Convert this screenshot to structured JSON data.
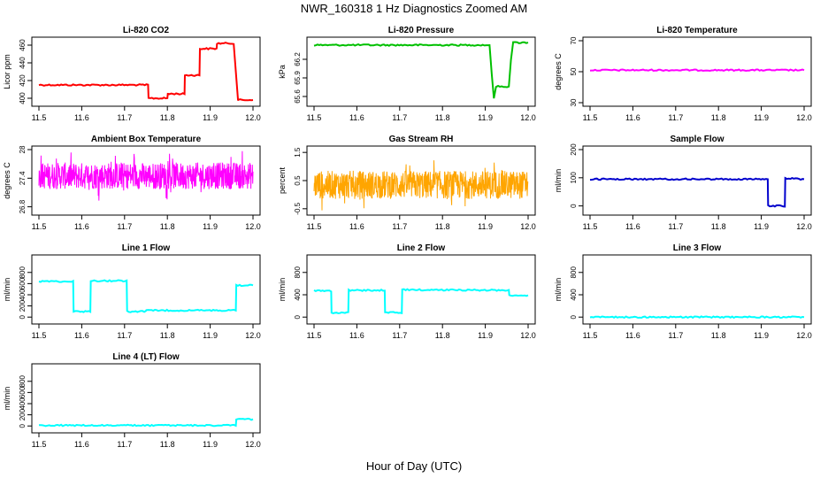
{
  "figure": {
    "title": "NWR_160318  1 Hz Diagnostics Zoomed AM",
    "xlabel": "Hour of Day (UTC)"
  },
  "chart_data": [
    {
      "type": "line",
      "title": "Li-820 CO2",
      "ylabel": "Licor ppm",
      "color": "#ff0000",
      "xlim": [
        11.5,
        12.0
      ],
      "ylim": [
        395,
        465
      ],
      "yticks": [
        400,
        420,
        440,
        460
      ],
      "xticks": [
        11.5,
        11.6,
        11.7,
        11.8,
        11.9,
        12.0
      ],
      "x": [
        11.5,
        11.755,
        11.756,
        11.8,
        11.801,
        11.84,
        11.841,
        11.875,
        11.876,
        11.915,
        11.916,
        11.955,
        11.965,
        11.966,
        12.0
      ],
      "y": [
        415,
        415,
        400,
        400,
        405,
        405,
        426,
        426,
        456,
        456,
        462,
        462,
        398,
        398,
        398
      ]
    },
    {
      "type": "line",
      "title": "Li-820 Pressure",
      "ylabel": "kPa",
      "color": "#00c000",
      "xlim": [
        11.5,
        12.0
      ],
      "ylim": [
        65.5,
        66.5
      ],
      "yticks": [
        65.6,
        65.9,
        66.2
      ],
      "xticks": [
        11.5,
        11.6,
        11.7,
        11.8,
        11.9,
        12.0
      ],
      "x": [
        11.5,
        11.91,
        11.915,
        11.92,
        11.925,
        11.93,
        11.955,
        11.96,
        11.965,
        11.97,
        12.0
      ],
      "y": [
        66.43,
        66.43,
        65.95,
        65.58,
        65.76,
        65.76,
        65.76,
        66.2,
        66.47,
        66.47,
        66.47
      ]
    },
    {
      "type": "line",
      "title": "Li-820 Temperature",
      "ylabel": "degrees C",
      "color": "#ff00ff",
      "xlim": [
        11.5,
        12.0
      ],
      "ylim": [
        30,
        70
      ],
      "yticks": [
        30,
        50,
        70
      ],
      "xticks": [
        11.5,
        11.6,
        11.7,
        11.8,
        11.9,
        12.0
      ],
      "x": [
        11.5,
        12.0
      ],
      "y": [
        51,
        51
      ]
    },
    {
      "type": "noise",
      "title": "Ambient Box Temperature",
      "ylabel": "degrees C",
      "color": "#ff00ff",
      "xlim": [
        11.5,
        12.0
      ],
      "ylim": [
        26.7,
        28.0
      ],
      "yticks": [
        26.8,
        27.4,
        28.0
      ],
      "xticks": [
        11.5,
        11.6,
        11.7,
        11.8,
        11.9,
        12.0
      ],
      "center": 27.45,
      "amplitude": 0.28
    },
    {
      "type": "noise",
      "title": "Gas Stream RH",
      "ylabel": "percent",
      "color": "#ffa500",
      "xlim": [
        11.5,
        12.0
      ],
      "ylim": [
        -0.6,
        1.6
      ],
      "yticks": [
        -0.5,
        0.5,
        1.5
      ],
      "xticks": [
        11.5,
        11.6,
        11.7,
        11.8,
        11.9,
        12.0
      ],
      "center": 0.35,
      "amplitude": 0.5
    },
    {
      "type": "line",
      "title": "Sample Flow",
      "ylabel": "ml/min",
      "color": "#0000cd",
      "xlim": [
        11.5,
        12.0
      ],
      "ylim": [
        -20,
        200
      ],
      "yticks": [
        0,
        100,
        200
      ],
      "xticks": [
        11.5,
        11.6,
        11.7,
        11.8,
        11.9,
        12.0
      ],
      "x": [
        11.5,
        11.915,
        11.916,
        11.955,
        11.956,
        12.0
      ],
      "y": [
        95,
        95,
        0,
        0,
        98,
        95
      ]
    },
    {
      "type": "line",
      "title": "Line 1 Flow",
      "ylabel": "ml/min",
      "color": "#00ffff",
      "xlim": [
        11.5,
        12.0
      ],
      "ylim": [
        -60,
        1050
      ],
      "yticks": [
        0,
        200,
        400,
        600,
        800
      ],
      "xticks": [
        11.5,
        11.6,
        11.7,
        11.8,
        11.9,
        12.0
      ],
      "x": [
        11.5,
        11.58,
        11.581,
        11.62,
        11.621,
        11.705,
        11.706,
        11.75,
        11.751,
        11.955,
        11.96,
        11.961,
        12.0
      ],
      "y": [
        640,
        640,
        100,
        100,
        650,
        650,
        100,
        100,
        120,
        120,
        120,
        570,
        570
      ]
    },
    {
      "type": "line",
      "title": "Line 2 Flow",
      "ylabel": "ml/min",
      "color": "#00ffff",
      "xlim": [
        11.5,
        12.0
      ],
      "ylim": [
        -60,
        1050
      ],
      "yticks": [
        0,
        400,
        800
      ],
      "xticks": [
        11.5,
        11.6,
        11.7,
        11.8,
        11.9,
        12.0
      ],
      "x": [
        11.5,
        11.54,
        11.541,
        11.58,
        11.581,
        11.665,
        11.666,
        11.705,
        11.706,
        11.955,
        11.956,
        12.0
      ],
      "y": [
        470,
        470,
        80,
        80,
        480,
        480,
        80,
        80,
        490,
        480,
        390,
        390
      ]
    },
    {
      "type": "line",
      "title": "Line 3 Flow",
      "ylabel": "ml/min",
      "color": "#00ffff",
      "xlim": [
        11.5,
        12.0
      ],
      "ylim": [
        -60,
        1050
      ],
      "yticks": [
        0,
        400,
        800
      ],
      "xticks": [
        11.5,
        11.6,
        11.7,
        11.8,
        11.9,
        12.0
      ],
      "x": [
        11.5,
        12.0
      ],
      "y": [
        0,
        0
      ]
    },
    {
      "type": "line",
      "title": "Line 4 (LT) Flow",
      "ylabel": "ml/min",
      "color": "#00ffff",
      "xlim": [
        11.5,
        12.0
      ],
      "ylim": [
        -60,
        1050
      ],
      "yticks": [
        0,
        200,
        400,
        600,
        800
      ],
      "xticks": [
        11.5,
        11.6,
        11.7,
        11.8,
        11.9,
        12.0
      ],
      "x": [
        11.5,
        11.955,
        11.96,
        11.961,
        12.0
      ],
      "y": [
        10,
        10,
        10,
        120,
        120
      ]
    }
  ]
}
